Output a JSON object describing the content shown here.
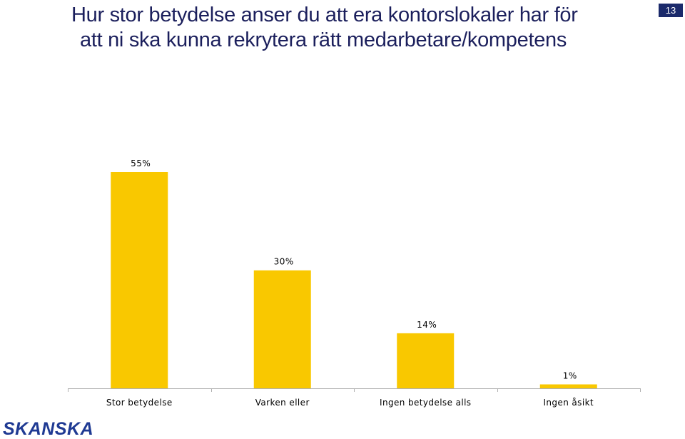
{
  "title_lines": [
    "Hur stor betydelse anser du att era kontorslokaler har för",
    "att ni ska kunna rekrytera rätt medarbetare/kompetens"
  ],
  "page_number": "13",
  "logo_text": "SKANSKA",
  "colors": {
    "bar": "#f9c800",
    "title": "#1b1f5c",
    "page_badge": "#1b2a6b",
    "logo": "#1f3a93",
    "axis": "#b0b0b0"
  },
  "chart_data": {
    "type": "bar",
    "categories": [
      "Stor betydelse",
      "Varken eller",
      "Ingen betydelse alls",
      "Ingen åsikt"
    ],
    "values": [
      55,
      30,
      14,
      1
    ],
    "value_labels": [
      "55%",
      "30%",
      "14%",
      "1%"
    ],
    "unit": "%",
    "ylim": [
      0,
      55
    ],
    "grid": false,
    "legend": "none"
  }
}
